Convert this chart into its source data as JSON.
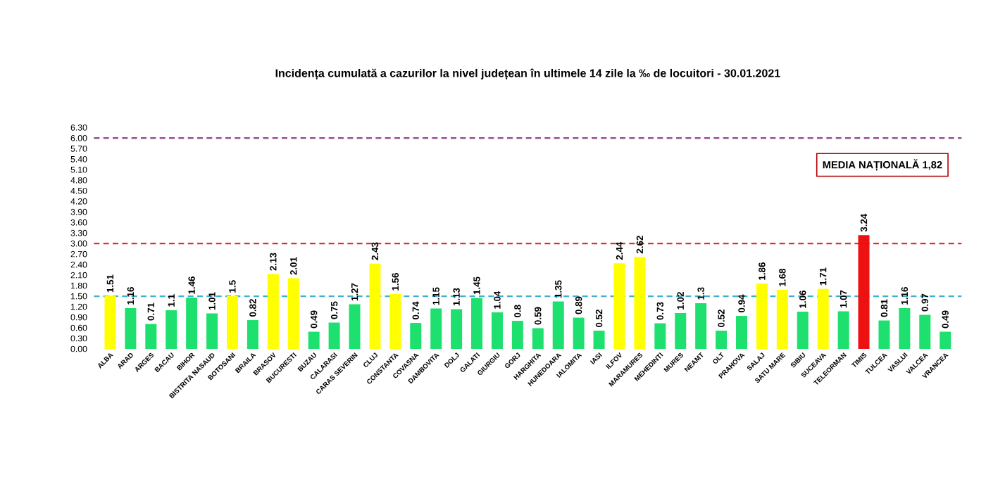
{
  "chart_data": {
    "type": "bar",
    "title": "Incidența cumulată a cazurilor la nivel județean în ultimele 14 zile la ‰ de locuitori - 30.01.2021",
    "categories": [
      "ALBA",
      "ARAD",
      "ARGES",
      "BACAU",
      "BIHOR",
      "BISTRITA NASAUD",
      "BOTOSANI",
      "BRAILA",
      "BRASOV",
      "BUCURESTI",
      "BUZAU",
      "CALARASI",
      "CARAS SEVERIN",
      "CLUJ",
      "CONSTANTA",
      "COVASNA",
      "DAMBOVITA",
      "DOLJ",
      "GALATI",
      "GIURGIU",
      "GORJ",
      "HARGHITA",
      "HUNEDOARA",
      "IALOMITA",
      "IASI",
      "ILFOV",
      "MARAMURES",
      "MEHEDINTI",
      "MURES",
      "NEAMT",
      "OLT",
      "PRAHOVA",
      "SALAJ",
      "SATU MARE",
      "SIBIU",
      "SUCEAVA",
      "TELEORMAN",
      "TIMIS",
      "TULCEA",
      "VASLUI",
      "VALCEA",
      "VRANCEA"
    ],
    "values": [
      1.51,
      1.16,
      0.71,
      1.1,
      1.46,
      1.01,
      1.5,
      0.82,
      2.13,
      2.01,
      0.49,
      0.75,
      1.27,
      2.43,
      1.56,
      0.74,
      1.15,
      1.13,
      1.45,
      1.04,
      0.8,
      0.59,
      1.35,
      0.89,
      0.52,
      2.44,
      2.62,
      0.73,
      1.02,
      1.3,
      0.52,
      0.94,
      1.86,
      1.68,
      1.06,
      1.71,
      1.07,
      3.24,
      0.81,
      1.16,
      0.97,
      0.49
    ],
    "colors": [
      "#ffff00",
      "#1ee06e",
      "#1ee06e",
      "#1ee06e",
      "#1ee06e",
      "#1ee06e",
      "#ffff00",
      "#1ee06e",
      "#ffff00",
      "#ffff00",
      "#1ee06e",
      "#1ee06e",
      "#1ee06e",
      "#ffff00",
      "#ffff00",
      "#1ee06e",
      "#1ee06e",
      "#1ee06e",
      "#1ee06e",
      "#1ee06e",
      "#1ee06e",
      "#1ee06e",
      "#1ee06e",
      "#1ee06e",
      "#1ee06e",
      "#ffff00",
      "#ffff00",
      "#1ee06e",
      "#1ee06e",
      "#1ee06e",
      "#1ee06e",
      "#1ee06e",
      "#ffff00",
      "#ffff00",
      "#1ee06e",
      "#ffff00",
      "#1ee06e",
      "#ee1111",
      "#1ee06e",
      "#1ee06e",
      "#1ee06e",
      "#1ee06e"
    ],
    "data_labels": true,
    "ylim": [
      0,
      6.3
    ],
    "yticks": [
      {
        "value": 0,
        "label": "0.00"
      },
      {
        "value": 0.3,
        "label": "0.30"
      },
      {
        "value": 0.6,
        "label": "0.60"
      },
      {
        "value": 0.9,
        "label": "0.90"
      },
      {
        "value": 1.2,
        "label": "1.20"
      },
      {
        "value": 1.5,
        "label": "1.50"
      },
      {
        "value": 1.8,
        "label": "1.80"
      },
      {
        "value": 2.1,
        "label": "2.10"
      },
      {
        "value": 2.4,
        "label": "2.40"
      },
      {
        "value": 2.7,
        "label": "2.70"
      },
      {
        "value": 3.0,
        "label": "3.00"
      },
      {
        "value": 3.3,
        "label": "3.30"
      },
      {
        "value": 3.6,
        "label": "3.60"
      },
      {
        "value": 3.9,
        "label": "3.90"
      },
      {
        "value": 4.2,
        "label": "4.20"
      },
      {
        "value": 4.5,
        "label": "4.50"
      },
      {
        "value": 4.8,
        "label": "4.80"
      },
      {
        "value": 5.1,
        "label": "5.10"
      },
      {
        "value": 5.4,
        "label": "5.40"
      },
      {
        "value": 5.7,
        "label": "5.70"
      },
      {
        "value": 6.0,
        "label": "6.00"
      },
      {
        "value": 6.3,
        "label": "6.30"
      }
    ],
    "ref_lines": [
      {
        "axis": "y",
        "value": 6,
        "color": "#9a4f9a",
        "line_style": "dashed"
      },
      {
        "axis": "y",
        "value": 3,
        "color": "#e03030",
        "line_style": "dashed"
      },
      {
        "axis": "y",
        "value": 1.5,
        "color": "#40b0d0",
        "line_style": "dashed"
      }
    ],
    "annotations": [
      "MEDIA NAȚIONALĂ  1,82"
    ],
    "grid": false
  }
}
